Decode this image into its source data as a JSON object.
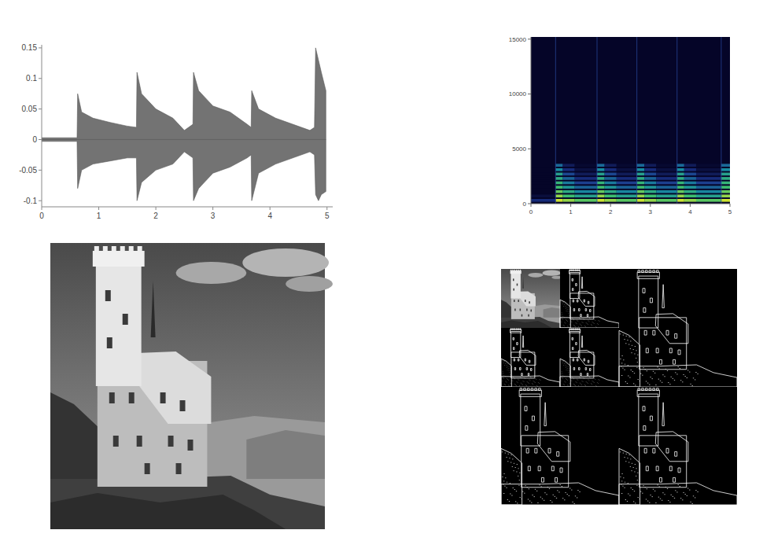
{
  "chart_data": [
    {
      "type": "area",
      "x": [
        0,
        0.62,
        0.63,
        0.7,
        0.9,
        1.2,
        1.5,
        1.66,
        1.67,
        1.75,
        2.0,
        2.3,
        2.5,
        2.65,
        2.66,
        2.75,
        3.0,
        3.3,
        3.6,
        3.67,
        3.68,
        3.8,
        4.1,
        4.4,
        4.7,
        4.78,
        4.8,
        4.85,
        4.9,
        4.98
      ],
      "series": [
        {
          "color": "#5a5a5a",
          "values": [
            0.003,
            0.003,
            0.075,
            0.045,
            0.035,
            0.028,
            0.022,
            0.02,
            0.11,
            0.075,
            0.05,
            0.035,
            0.015,
            0.025,
            0.11,
            0.08,
            0.055,
            0.045,
            0.025,
            0.02,
            0.08,
            0.05,
            0.035,
            0.025,
            0.015,
            0.02,
            0.15,
            0.13,
            0.11,
            0.08
          ]
        },
        {
          "color": "#5a5a5a",
          "values": [
            -0.003,
            -0.003,
            -0.08,
            -0.05,
            -0.04,
            -0.035,
            -0.03,
            -0.03,
            -0.1,
            -0.07,
            -0.05,
            -0.04,
            -0.02,
            -0.03,
            -0.1,
            -0.08,
            -0.055,
            -0.045,
            -0.03,
            -0.025,
            -0.1,
            -0.055,
            -0.04,
            -0.03,
            -0.02,
            -0.025,
            -0.09,
            -0.1,
            -0.09,
            -0.085
          ]
        }
      ],
      "xlim": [
        0,
        5.1
      ],
      "ylim": [
        -0.11,
        0.155
      ],
      "xticks": [
        0,
        1,
        2,
        3,
        4,
        5
      ],
      "yticks": [
        -0.1,
        -0.05,
        0,
        0.05,
        0.1,
        0.15
      ]
    },
    {
      "type": "heatmap",
      "x": [
        0,
        0.62,
        0.8,
        1.1,
        1.66,
        1.85,
        2.15,
        2.66,
        2.85,
        3.15,
        3.67,
        3.85,
        4.15,
        4.78,
        5.0
      ],
      "y": [
        300,
        700,
        1100,
        1500,
        1900,
        2300,
        2700,
        3100,
        3500
      ],
      "cells": [
        [
          0.2,
          1,
          0.9,
          0.8,
          1,
          0.9,
          0.8,
          1,
          0.9,
          0.8,
          1,
          0.9,
          0.8,
          1
        ],
        [
          0.05,
          0.9,
          0.75,
          0.6,
          0.9,
          0.75,
          0.6,
          0.9,
          0.75,
          0.6,
          0.9,
          0.75,
          0.6,
          0.9
        ],
        [
          0,
          0.82,
          0.65,
          0.48,
          0.82,
          0.65,
          0.48,
          0.82,
          0.65,
          0.48,
          0.82,
          0.65,
          0.48,
          0.82
        ],
        [
          0,
          0.75,
          0.55,
          0.38,
          0.75,
          0.55,
          0.38,
          0.75,
          0.55,
          0.38,
          0.75,
          0.55,
          0.38,
          0.75
        ],
        [
          0,
          0.7,
          0.45,
          0.28,
          0.7,
          0.45,
          0.28,
          0.7,
          0.45,
          0.28,
          0.7,
          0.45,
          0.28,
          0.7
        ],
        [
          0,
          0.65,
          0.38,
          0.2,
          0.65,
          0.38,
          0.2,
          0.65,
          0.38,
          0.2,
          0.65,
          0.38,
          0.2,
          0.65
        ],
        [
          0,
          0.6,
          0.3,
          0.12,
          0.6,
          0.3,
          0.12,
          0.6,
          0.3,
          0.12,
          0.6,
          0.3,
          0.12,
          0.6
        ],
        [
          0,
          0.5,
          0.2,
          0.06,
          0.5,
          0.2,
          0.06,
          0.5,
          0.2,
          0.06,
          0.5,
          0.2,
          0.06,
          0.5
        ],
        [
          0,
          0.4,
          0.12,
          0.02,
          0.4,
          0.12,
          0.02,
          0.4,
          0.12,
          0.02,
          0.4,
          0.12,
          0.02,
          0.4
        ]
      ],
      "zlim": [
        0,
        1
      ],
      "onsets": [
        0.62,
        1.66,
        2.66,
        3.67,
        4.78
      ],
      "xlim": [
        0,
        5
      ],
      "ylim": [
        0,
        15200
      ],
      "xticks": [
        0,
        1,
        2,
        3,
        4,
        5
      ],
      "yticks": [
        0,
        5000,
        10000,
        15000
      ]
    }
  ]
}
